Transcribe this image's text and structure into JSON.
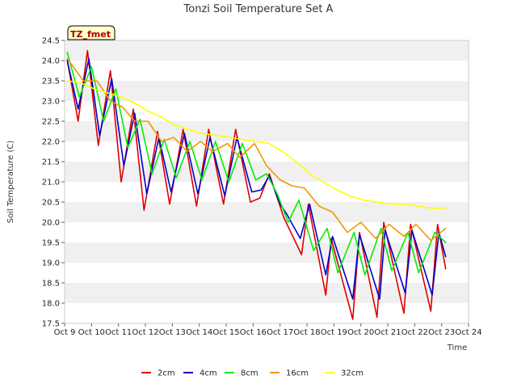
{
  "chart_data": {
    "type": "line",
    "title": "Tonzi Soil Temperature Set A",
    "xlabel": "Time",
    "ylabel": "Soil Temperature (C)",
    "badge": "TZ_fmet",
    "ylim": [
      17.5,
      24.5
    ],
    "yticks": [
      17.5,
      18.0,
      18.5,
      19.0,
      19.5,
      20.0,
      20.5,
      21.0,
      21.5,
      22.0,
      22.5,
      23.0,
      23.5,
      24.0,
      24.5
    ],
    "ytick_labels": [
      "17.5",
      "18.0",
      "18.5",
      "19.0",
      "19.5",
      "20.0",
      "20.5",
      "21.0",
      "21.5",
      "22.0",
      "22.5",
      "23.0",
      "23.5",
      "24.0",
      "24.5"
    ],
    "xlim": [
      9,
      24
    ],
    "xticks": [
      9,
      10,
      11,
      12,
      13,
      14,
      15,
      16,
      17,
      18,
      19,
      20,
      21,
      22,
      23,
      24
    ],
    "xtick_labels": [
      "Oct 9",
      "Oct 10",
      "Oct 11",
      "Oct 12",
      "Oct 13",
      "Oct 14",
      "Oct 15",
      "Oct 16",
      "Oct 17",
      "Oct 18",
      "Oct 19",
      "Oct 20",
      "Oct 21",
      "Oct 22",
      "Oct 23",
      "Oct 24"
    ],
    "grid": "horizontal bands",
    "legend": "bottom",
    "series": [
      {
        "name": "2cm",
        "color": "#dd0000",
        "x": [
          9.1,
          9.5,
          9.85,
          10.25,
          10.7,
          11.1,
          11.55,
          11.95,
          12.45,
          12.9,
          13.4,
          13.9,
          14.35,
          14.9,
          15.35,
          15.9,
          16.25,
          16.6,
          16.95,
          17.15,
          17.8,
          18.05,
          18.7,
          18.9,
          19.7,
          19.95,
          20.6,
          20.85,
          21.6,
          21.85,
          22.6,
          22.85,
          23.15
        ],
        "y": [
          24.0,
          22.5,
          24.25,
          21.9,
          23.75,
          21.0,
          22.8,
          20.3,
          22.25,
          20.45,
          22.3,
          20.4,
          22.3,
          20.45,
          22.3,
          20.5,
          20.6,
          21.2,
          20.5,
          20.1,
          19.2,
          20.45,
          18.2,
          19.6,
          17.6,
          19.75,
          17.65,
          20.0,
          17.75,
          19.95,
          17.8,
          19.95,
          18.85
        ]
      },
      {
        "name": "4cm",
        "color": "#0000cc",
        "x": [
          9.1,
          9.5,
          9.9,
          10.3,
          10.75,
          11.2,
          11.6,
          12.05,
          12.5,
          12.95,
          13.45,
          13.95,
          14.4,
          14.95,
          15.4,
          15.95,
          16.3,
          16.6,
          17.0,
          17.25,
          17.75,
          18.1,
          18.7,
          18.95,
          19.7,
          19.95,
          20.7,
          20.9,
          21.65,
          21.9,
          22.65,
          22.9,
          23.15
        ],
        "y": [
          24.0,
          22.8,
          24.05,
          22.15,
          23.55,
          21.4,
          22.7,
          20.7,
          22.1,
          20.75,
          22.2,
          20.7,
          22.1,
          20.65,
          22.1,
          20.75,
          20.8,
          21.15,
          20.45,
          20.2,
          19.6,
          20.45,
          18.7,
          19.65,
          18.1,
          19.7,
          18.1,
          19.8,
          18.25,
          19.8,
          18.2,
          19.75,
          19.15
        ]
      },
      {
        "name": "8cm",
        "color": "#00ee00",
        "x": [
          9.1,
          9.55,
          10.0,
          10.45,
          10.9,
          11.35,
          11.8,
          12.25,
          12.7,
          13.15,
          13.65,
          14.1,
          14.6,
          15.1,
          15.6,
          16.1,
          16.5,
          16.9,
          17.3,
          17.7,
          18.25,
          18.75,
          19.15,
          19.75,
          20.15,
          20.75,
          21.15,
          21.75,
          22.15,
          22.75,
          23.15
        ],
        "y": [
          24.2,
          23.1,
          23.85,
          22.5,
          23.3,
          21.85,
          22.55,
          21.2,
          22.05,
          21.1,
          22.0,
          21.05,
          22.0,
          21.0,
          21.95,
          21.05,
          21.2,
          20.7,
          20.0,
          20.55,
          19.3,
          19.85,
          18.75,
          19.75,
          18.7,
          19.85,
          18.8,
          19.75,
          18.75,
          19.75,
          19.5
        ]
      },
      {
        "name": "16cm",
        "color": "#ee9900",
        "x": [
          9.1,
          9.7,
          10.2,
          10.7,
          11.15,
          11.6,
          12.1,
          12.6,
          13.05,
          13.55,
          14.05,
          14.5,
          15.05,
          15.5,
          16.05,
          16.5,
          17.0,
          17.45,
          17.9,
          18.45,
          18.95,
          19.5,
          20.0,
          20.55,
          21.05,
          21.6,
          22.05,
          22.6,
          23.15
        ],
        "y": [
          24.05,
          23.5,
          23.5,
          23.0,
          22.85,
          22.5,
          22.5,
          22.0,
          22.1,
          21.75,
          22.0,
          21.75,
          21.95,
          21.6,
          21.95,
          21.4,
          21.05,
          20.9,
          20.85,
          20.4,
          20.25,
          19.75,
          20.0,
          19.6,
          19.95,
          19.65,
          19.95,
          19.55,
          19.85
        ]
      },
      {
        "name": "32cm",
        "color": "#ffff00",
        "x": [
          9.1,
          9.6,
          10.1,
          10.6,
          11.1,
          11.6,
          12.1,
          12.6,
          13.1,
          13.6,
          14.1,
          14.6,
          15.1,
          15.6,
          16.1,
          16.6,
          17.1,
          17.6,
          18.1,
          18.6,
          19.1,
          19.6,
          20.1,
          20.6,
          21.1,
          21.6,
          22.1,
          22.6,
          23.15
        ],
        "y": [
          23.5,
          23.45,
          23.3,
          23.2,
          23.1,
          22.95,
          22.75,
          22.6,
          22.4,
          22.3,
          22.2,
          22.15,
          22.1,
          22.05,
          22.0,
          21.95,
          21.75,
          21.5,
          21.2,
          21.0,
          20.8,
          20.65,
          20.55,
          20.5,
          20.45,
          20.45,
          20.4,
          20.35,
          20.35
        ]
      }
    ]
  }
}
